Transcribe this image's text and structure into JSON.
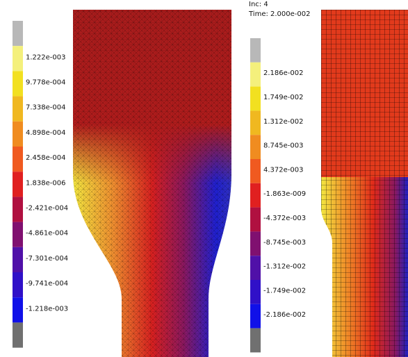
{
  "left_panel": {
    "legend_labels": [
      "1.222e-003",
      "9.778e-004",
      "7.338e-004",
      "4.898e-004",
      "2.458e-004",
      "1.838e-006",
      "-2.421e-004",
      "-4.861e-004",
      "-7.301e-004",
      "-9.741e-004",
      "-1.218e-003"
    ]
  },
  "right_panel": {
    "increment": "Inc:   4",
    "time": "Time: 2.000e-002",
    "legend_labels": [
      "2.186e-002",
      "1.749e-002",
      "1.312e-002",
      "8.745e-003",
      "4.372e-003",
      "-1.863e-009",
      "-4.372e-003",
      "-8.745e-003",
      "-1.312e-002",
      "-1.749e-002",
      "-2.186e-002"
    ]
  }
}
